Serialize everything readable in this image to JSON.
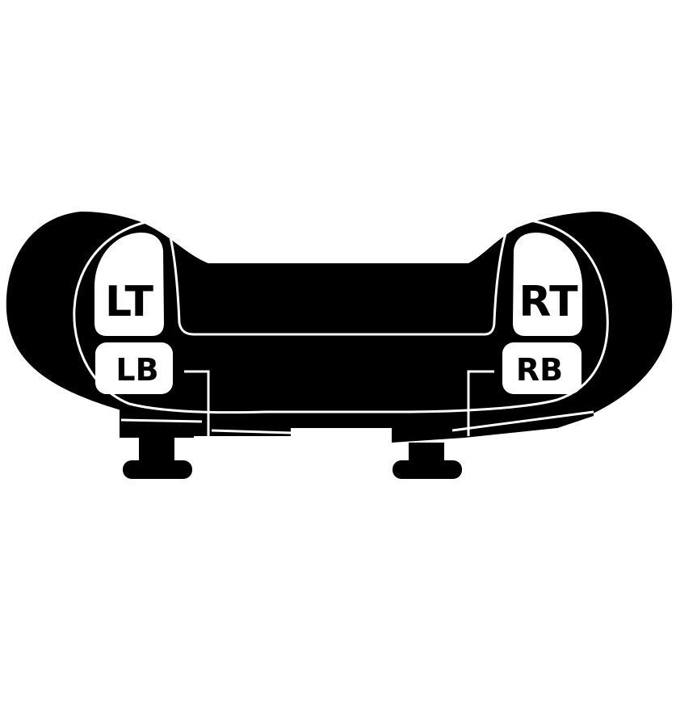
{
  "colors": {
    "body": "#000000",
    "outline": "#ffffff",
    "background": "#ffffff"
  },
  "buttons": {
    "left_trigger": "LT",
    "left_bumper": "LB",
    "right_trigger": "RT",
    "right_bumper": "RB"
  }
}
